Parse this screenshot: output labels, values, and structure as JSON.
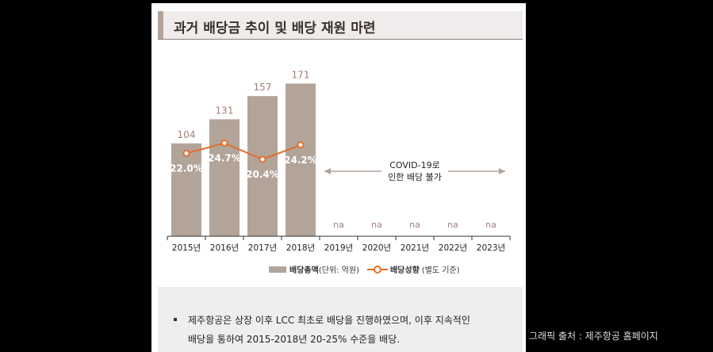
{
  "title": "과거 배당금 추이 및 배당 재원 마련",
  "chart_data": {
    "type": "bar",
    "categories": [
      "2015년",
      "2016년",
      "2017년",
      "2018년",
      "2019년",
      "2020년",
      "2021년",
      "2022년",
      "2023년"
    ],
    "series": [
      {
        "name": "배당총액",
        "unit_label": "(단위: 억원)",
        "values": [
          104,
          131,
          157,
          171,
          null,
          null,
          null,
          null,
          null
        ],
        "color": "#b3a49a"
      },
      {
        "name": "배당성향",
        "unit_label": "(별도 기준)",
        "values": [
          22.0,
          24.7,
          20.4,
          24.2,
          null,
          null,
          null,
          null,
          null
        ],
        "value_labels": [
          "22.0%",
          "24.7%",
          "20.4%",
          "24.2%"
        ],
        "color": "#e0702c"
      }
    ],
    "na_label": "na",
    "annotation": [
      "COVID-19로",
      "인한 배당 불가"
    ],
    "bar_ylim": [
      0,
      190
    ],
    "line_ylim": [
      0,
      45
    ],
    "legend": "bottom"
  },
  "note": {
    "line1": "제주항공은 상장 이후 LCC 최초로 배당을 진행하였으며, 이후 지속적인",
    "line2": "배당을 통하여 2015-2018년 20-25% 수준을 배당."
  },
  "source": "그래픽 출처 : 제주항공 홈페이지"
}
